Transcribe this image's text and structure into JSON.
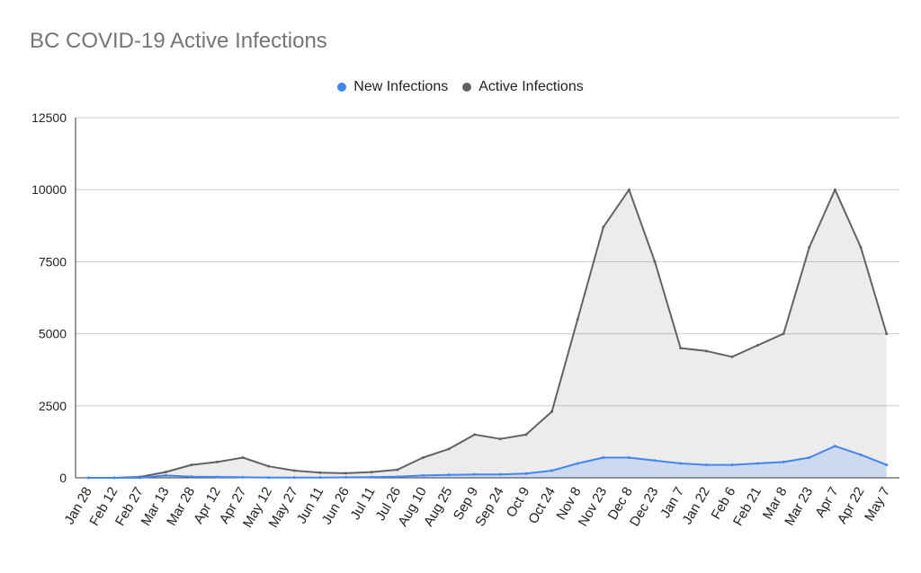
{
  "chart_data": {
    "type": "area",
    "title": "BC COVID-19 Active Infections",
    "xlabel": "",
    "ylabel": "",
    "ylim": [
      0,
      12500
    ],
    "y_ticks": [
      "0",
      "2500",
      "5000",
      "7500",
      "10000",
      "12500"
    ],
    "categories": [
      "Jan 28",
      "Feb 12",
      "Feb 27",
      "Mar 13",
      "Mar 28",
      "Apr 12",
      "Apr 27",
      "May 12",
      "May 27",
      "Jun 11",
      "Jun 26",
      "Jul 11",
      "Jul 26",
      "Aug 10",
      "Aug 25",
      "Sep 9",
      "Sep 24",
      "Oct 9",
      "Oct 24",
      "Nov 8",
      "Nov 23",
      "Dec 8",
      "Dec 23",
      "Jan 7",
      "Jan 22",
      "Feb 6",
      "Feb 21",
      "Mar 8",
      "Mar 23",
      "Apr 7",
      "Apr 22",
      "May 7"
    ],
    "legend_position": "top",
    "series": [
      {
        "name": "New Infections",
        "color": "#4285f4",
        "values": [
          0,
          0,
          0,
          80,
          40,
          30,
          20,
          10,
          10,
          10,
          15,
          25,
          40,
          80,
          100,
          120,
          120,
          150,
          250,
          500,
          700,
          700,
          600,
          500,
          450,
          450,
          500,
          550,
          700,
          1100,
          800,
          450
        ]
      },
      {
        "name": "Active Infections",
        "color": "#5f6368",
        "values": [
          0,
          0,
          30,
          200,
          450,
          550,
          700,
          400,
          250,
          180,
          160,
          200,
          280,
          700,
          1000,
          1500,
          1350,
          1500,
          2300,
          5500,
          8700,
          10000,
          7500,
          4500,
          4400,
          4200,
          4600,
          5000,
          8000,
          10000,
          8000,
          5000
        ]
      }
    ]
  }
}
